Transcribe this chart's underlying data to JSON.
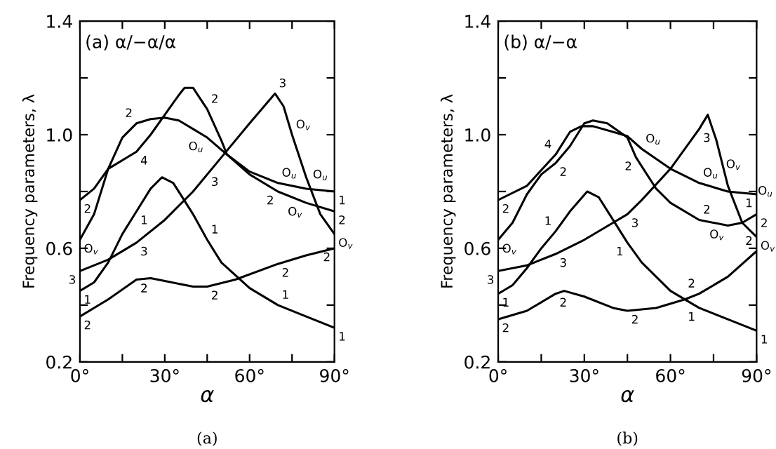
{
  "chart_data": [
    {
      "type": "line",
      "title": "(a) α/−α/α",
      "xlabel": "α",
      "ylabel": "Frequency parameters, λ",
      "line_style": "solid",
      "marker": "none",
      "grid": false,
      "legend": false,
      "xlim": [
        0,
        90
      ],
      "ylim": [
        0.2,
        1.4
      ],
      "xticks": [
        {
          "value": 0,
          "label": "0°"
        },
        {
          "value": 15,
          "label": null
        },
        {
          "value": 30,
          "label": "30°"
        },
        {
          "value": 45,
          "label": null
        },
        {
          "value": 60,
          "label": "60°"
        },
        {
          "value": 75,
          "label": null
        },
        {
          "value": 90,
          "label": "90°"
        }
      ],
      "yticks": [
        0.2,
        {
          "value": 0.4,
          "label": null
        },
        0.6,
        {
          "value": 0.8,
          "label": null
        },
        {
          "value": 1.0,
          "label": "1.0"
        },
        {
          "value": 1.2,
          "label": null
        },
        1.4
      ],
      "series": [
        {
          "color": "#000000",
          "x": [
            0,
            10,
            20,
            25,
            30,
            40,
            45,
            55,
            70,
            80,
            90
          ],
          "values": [
            0.36,
            0.42,
            0.49,
            0.495,
            0.485,
            0.465,
            0.465,
            0.49,
            0.545,
            0.575,
            0.6
          ]
        },
        {
          "color": "#000000",
          "x": [
            0,
            5,
            10,
            15,
            20,
            25,
            29,
            33,
            40,
            45,
            50,
            60,
            70,
            80,
            90
          ],
          "values": [
            0.45,
            0.48,
            0.55,
            0.65,
            0.73,
            0.81,
            0.85,
            0.83,
            0.72,
            0.63,
            0.55,
            0.46,
            0.4,
            0.36,
            0.32
          ]
        },
        {
          "color": "#000000",
          "x": [
            0,
            10,
            20,
            30,
            40,
            50,
            60,
            69,
            72,
            75,
            80,
            85,
            90
          ],
          "values": [
            0.52,
            0.56,
            0.62,
            0.7,
            0.8,
            0.92,
            1.04,
            1.145,
            1.1,
            1.0,
            0.85,
            0.72,
            0.65
          ]
        },
        {
          "color": "#000000",
          "x": [
            0,
            5,
            10,
            15,
            20,
            25,
            30,
            35,
            40,
            45,
            52,
            60,
            70,
            80,
            90
          ],
          "values": [
            0.63,
            0.72,
            0.88,
            0.99,
            1.04,
            1.055,
            1.06,
            1.05,
            1.02,
            0.99,
            0.93,
            0.87,
            0.83,
            0.81,
            0.8
          ]
        },
        {
          "color": "#000000",
          "x": [
            0,
            5,
            10,
            20,
            25,
            30,
            35,
            37,
            40,
            45,
            50,
            52,
            60,
            70,
            80,
            90
          ],
          "values": [
            0.77,
            0.81,
            0.88,
            0.94,
            1.0,
            1.07,
            1.14,
            1.165,
            1.165,
            1.09,
            0.98,
            0.93,
            0.86,
            0.8,
            0.76,
            0.73
          ]
        }
      ],
      "annotations": [
        "(a)",
        {
          "text": "2",
          "x": 0,
          "y": 0.77
        },
        {
          "text": "O$_{v}$",
          "x": 0,
          "y": 0.63
        },
        {
          "text": "3",
          "x": 0,
          "y": 0.52
        },
        {
          "text": "1",
          "x": 0,
          "y": 0.45
        },
        {
          "text": "2",
          "x": 0,
          "y": 0.36
        },
        {
          "text": "2",
          "x": 20,
          "y": 1.04
        },
        {
          "text": "4",
          "x": 20,
          "y": 0.94
        },
        {
          "text": "1",
          "x": 20,
          "y": 0.73
        },
        {
          "text": "3",
          "x": 20,
          "y": 0.62
        },
        {
          "text": "2",
          "x": 20,
          "y": 0.49
        },
        {
          "text": "2",
          "x": 45,
          "y": 1.09
        },
        {
          "text": "O$_{u}$",
          "x": 45,
          "y": 0.99
        },
        {
          "text": "3",
          "x": 45,
          "y": 0.865
        },
        {
          "text": "1",
          "x": 45,
          "y": 0.63
        },
        {
          "text": "2",
          "x": 45,
          "y": 0.465
        },
        {
          "text": "3",
          "x": 69,
          "y": 1.145
        },
        {
          "text": "O$_{v}$",
          "x": 75,
          "y": 1.0
        },
        {
          "text": "O$_{u}$",
          "x": 70,
          "y": 0.83
        },
        {
          "text": "2",
          "x": 70,
          "y": 0.8
        },
        {
          "text": "2",
          "x": 70,
          "y": 0.545
        },
        {
          "text": "1",
          "x": 70,
          "y": 0.4
        },
        {
          "text": "O$_{u}$",
          "x": 85,
          "y": 0.81
        },
        {
          "text": "O$_{v}$",
          "x": 80,
          "y": 0.76
        },
        {
          "text": "1",
          "x": 90,
          "y": 0.8
        },
        {
          "text": "2",
          "x": 90,
          "y": 0.73
        },
        {
          "text": "O$_{v}$",
          "x": 90,
          "y": 0.65
        },
        {
          "text": "2",
          "x": 90,
          "y": 0.6
        },
        {
          "text": "1",
          "x": 90,
          "y": 0.32
        }
      ]
    },
    {
      "type": "line",
      "title": "(b) α/−α",
      "xlabel": "α",
      "ylabel": "Frequency parameters, λ",
      "line_style": "solid",
      "marker": "none",
      "grid": false,
      "legend": false,
      "xlim": [
        0,
        90
      ],
      "ylim": [
        0.2,
        1.4
      ],
      "xticks": [
        {
          "value": 0,
          "label": "0°"
        },
        {
          "value": 15,
          "label": null
        },
        {
          "value": 30,
          "label": "30°"
        },
        {
          "value": 45,
          "label": null
        },
        {
          "value": 60,
          "label": "60°"
        },
        {
          "value": 75,
          "label": null
        },
        {
          "value": 90,
          "label": "90°"
        }
      ],
      "yticks": [
        0.2,
        {
          "value": 0.4,
          "label": null
        },
        0.6,
        {
          "value": 0.8,
          "label": null
        },
        {
          "value": 1.0,
          "label": "1.0"
        },
        {
          "value": 1.2,
          "label": null
        },
        1.4
      ],
      "series": [
        {
          "color": "#000000",
          "x": [
            0,
            10,
            20,
            23,
            30,
            40,
            45,
            55,
            65,
            70,
            80,
            90
          ],
          "values": [
            0.35,
            0.38,
            0.44,
            0.45,
            0.43,
            0.39,
            0.38,
            0.39,
            0.42,
            0.44,
            0.5,
            0.59
          ]
        },
        {
          "color": "#000000",
          "x": [
            0,
            5,
            10,
            15,
            20,
            25,
            31,
            35,
            40,
            45,
            50,
            60,
            70,
            80,
            90
          ],
          "values": [
            0.44,
            0.47,
            0.53,
            0.6,
            0.66,
            0.73,
            0.8,
            0.78,
            0.7,
            0.62,
            0.55,
            0.45,
            0.39,
            0.35,
            0.31
          ]
        },
        {
          "color": "#000000",
          "x": [
            0,
            10,
            20,
            30,
            40,
            45,
            50,
            60,
            70,
            73,
            76,
            80,
            85,
            90
          ],
          "values": [
            0.52,
            0.54,
            0.58,
            0.63,
            0.69,
            0.72,
            0.77,
            0.88,
            1.02,
            1.07,
            0.98,
            0.82,
            0.69,
            0.64
          ]
        },
        {
          "color": "#000000",
          "x": [
            0,
            5,
            10,
            15,
            20,
            25,
            30,
            33,
            38,
            45,
            48,
            55,
            60,
            70,
            80,
            85,
            90
          ],
          "values": [
            0.63,
            0.69,
            0.79,
            0.86,
            0.9,
            0.96,
            1.04,
            1.05,
            1.04,
            0.99,
            0.92,
            0.81,
            0.76,
            0.7,
            0.68,
            0.69,
            0.72
          ]
        },
        {
          "color": "#000000",
          "x": [
            0,
            10,
            20,
            25,
            29,
            33,
            40,
            45,
            50,
            60,
            70,
            80,
            90
          ],
          "values": [
            0.77,
            0.82,
            0.93,
            1.01,
            1.03,
            1.03,
            1.01,
            0.995,
            0.95,
            0.88,
            0.83,
            0.8,
            0.79
          ]
        }
      ],
      "annotations": [
        "(b)",
        {
          "text": "2",
          "x": 0,
          "y": 0.77
        },
        {
          "text": "O$_{v}$",
          "x": 0,
          "y": 0.63
        },
        {
          "text": "3",
          "x": 0,
          "y": 0.52
        },
        {
          "text": "1",
          "x": 0,
          "y": 0.44
        },
        {
          "text": "2",
          "x": 0,
          "y": 0.35
        },
        {
          "text": "4",
          "x": 20,
          "y": 0.93
        },
        {
          "text": "2",
          "x": 20,
          "y": 0.9
        },
        {
          "text": "1",
          "x": 20,
          "y": 0.66
        },
        {
          "text": "3",
          "x": 20,
          "y": 0.58
        },
        {
          "text": "2",
          "x": 20,
          "y": 0.44
        },
        {
          "text": "O$_{u}$",
          "x": 50,
          "y": 0.95
        },
        {
          "text": "2",
          "x": 48,
          "y": 0.92
        },
        {
          "text": "3",
          "x": 45,
          "y": 0.72
        },
        {
          "text": "1",
          "x": 45,
          "y": 0.62
        },
        {
          "text": "2",
          "x": 45,
          "y": 0.38
        },
        {
          "text": "3",
          "x": 70,
          "y": 1.02
        },
        {
          "text": "O$_{v}$",
          "x": 78,
          "y": 0.86
        },
        {
          "text": "O$_{u}$",
          "x": 70,
          "y": 0.83
        },
        {
          "text": "O$_{u}$",
          "x": 85,
          "y": 0.8
        },
        {
          "text": "O$_{v}$",
          "x": 80,
          "y": 0.68
        },
        {
          "text": "2",
          "x": 70,
          "y": 0.7
        },
        {
          "text": "2",
          "x": 70,
          "y": 0.44
        },
        {
          "text": "1",
          "x": 70,
          "y": 0.39
        },
        {
          "text": "1",
          "x": 90,
          "y": 0.79
        },
        {
          "text": "2",
          "x": 90,
          "y": 0.72
        },
        {
          "text": "O$_{v}$",
          "x": 90,
          "y": 0.64
        },
        {
          "text": "2",
          "x": 90,
          "y": 0.59
        },
        {
          "text": "1",
          "x": 90,
          "y": 0.31
        }
      ]
    }
  ]
}
